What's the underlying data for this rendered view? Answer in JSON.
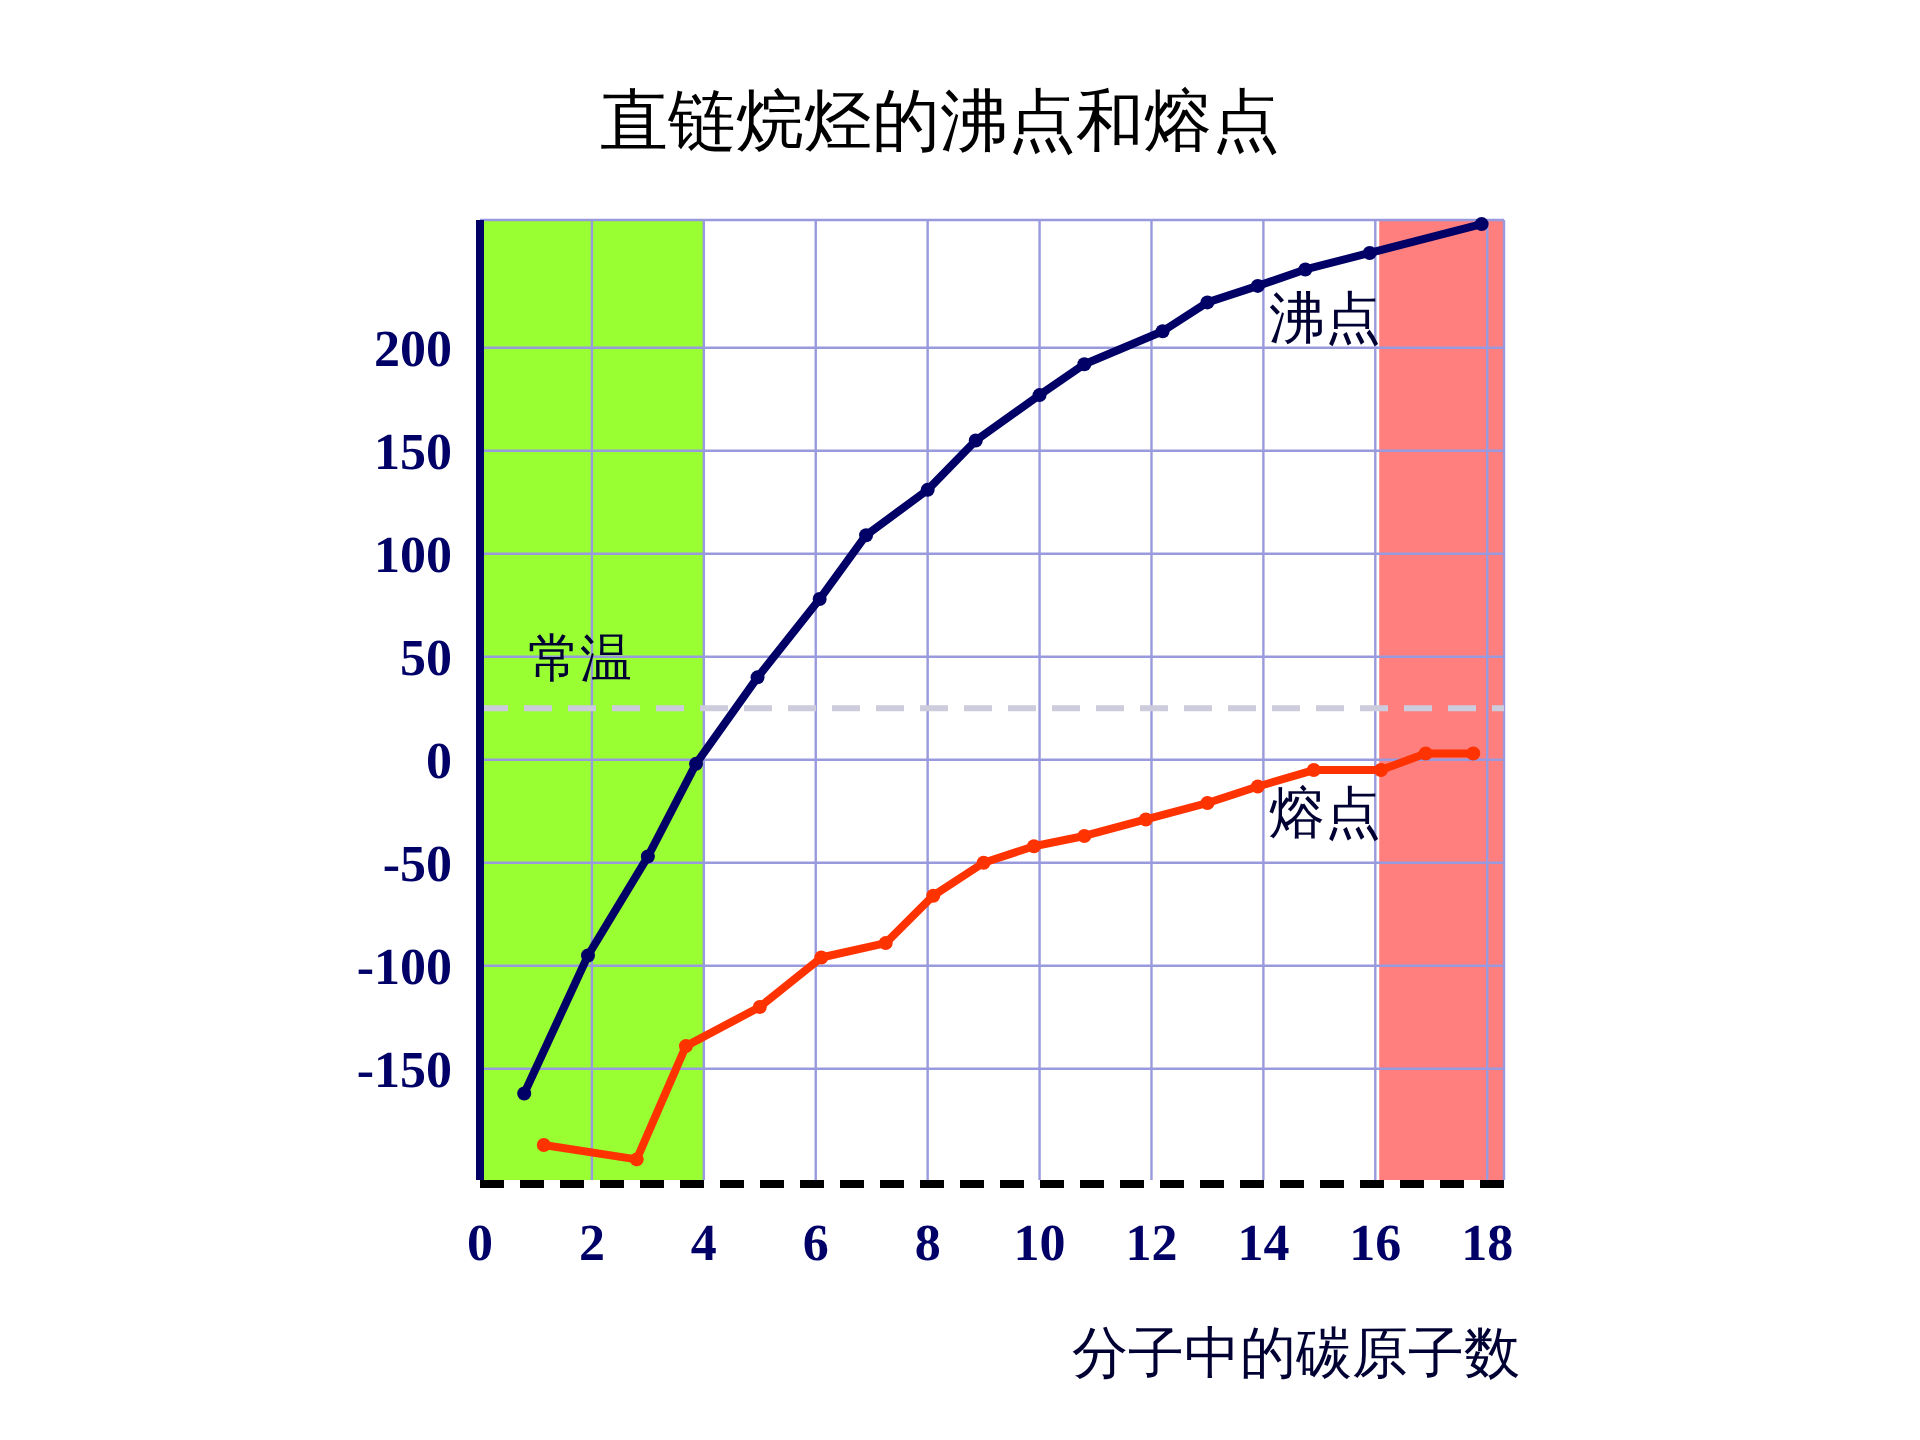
{
  "chart_data": {
    "type": "line",
    "title": "直链烷烃的沸点和熔点",
    "xlabel": "分子中的碳原子数",
    "xlim": [
      0,
      18.3
    ],
    "xticks": [
      0,
      2,
      4,
      6,
      8,
      10,
      12,
      14,
      16,
      18
    ],
    "ylim": [
      -204,
      262
    ],
    "yticks": [
      -150,
      -100,
      -50,
      0,
      50,
      100,
      150,
      200
    ],
    "grid": true,
    "marker": "circle",
    "line_style": "solid",
    "series": [
      {
        "name": "沸点",
        "color": "#000066",
        "x": [
          0.79,
          1.93,
          3.0,
          3.86,
          4.96,
          6.07,
          6.9,
          8.0,
          8.86,
          10.0,
          10.8,
          12.2,
          13.0,
          13.9,
          14.75,
          15.9,
          17.9
        ],
        "values": [
          -162,
          -95,
          -47,
          -2,
          40,
          78,
          109,
          131,
          155,
          177,
          192,
          208,
          222,
          230,
          238,
          246,
          260
        ]
      },
      {
        "name": "熔点",
        "color": "#ff3300",
        "x": [
          1.14,
          2.8,
          3.68,
          5.0,
          6.1,
          7.25,
          8.1,
          9.0,
          9.9,
          10.8,
          11.9,
          13.0,
          13.9,
          14.9,
          16.1,
          16.9,
          17.75
        ],
        "values": [
          -187,
          -194,
          -139,
          -120,
          -96,
          -89,
          -66,
          -50,
          -42,
          -37,
          -29,
          -21,
          -13,
          -5,
          -5,
          3,
          3
        ]
      }
    ],
    "ref_lines": [
      {
        "axis": "y",
        "value": 25,
        "label": "常温",
        "color": "#ccccdd",
        "line_style": "dashed"
      }
    ],
    "bands": [
      {
        "axis": "x",
        "from": 0,
        "to": 4,
        "color": "#99ff33"
      },
      {
        "axis": "x",
        "from": 16.07,
        "to": 18.3,
        "color": "#ff7f7f"
      }
    ]
  }
}
